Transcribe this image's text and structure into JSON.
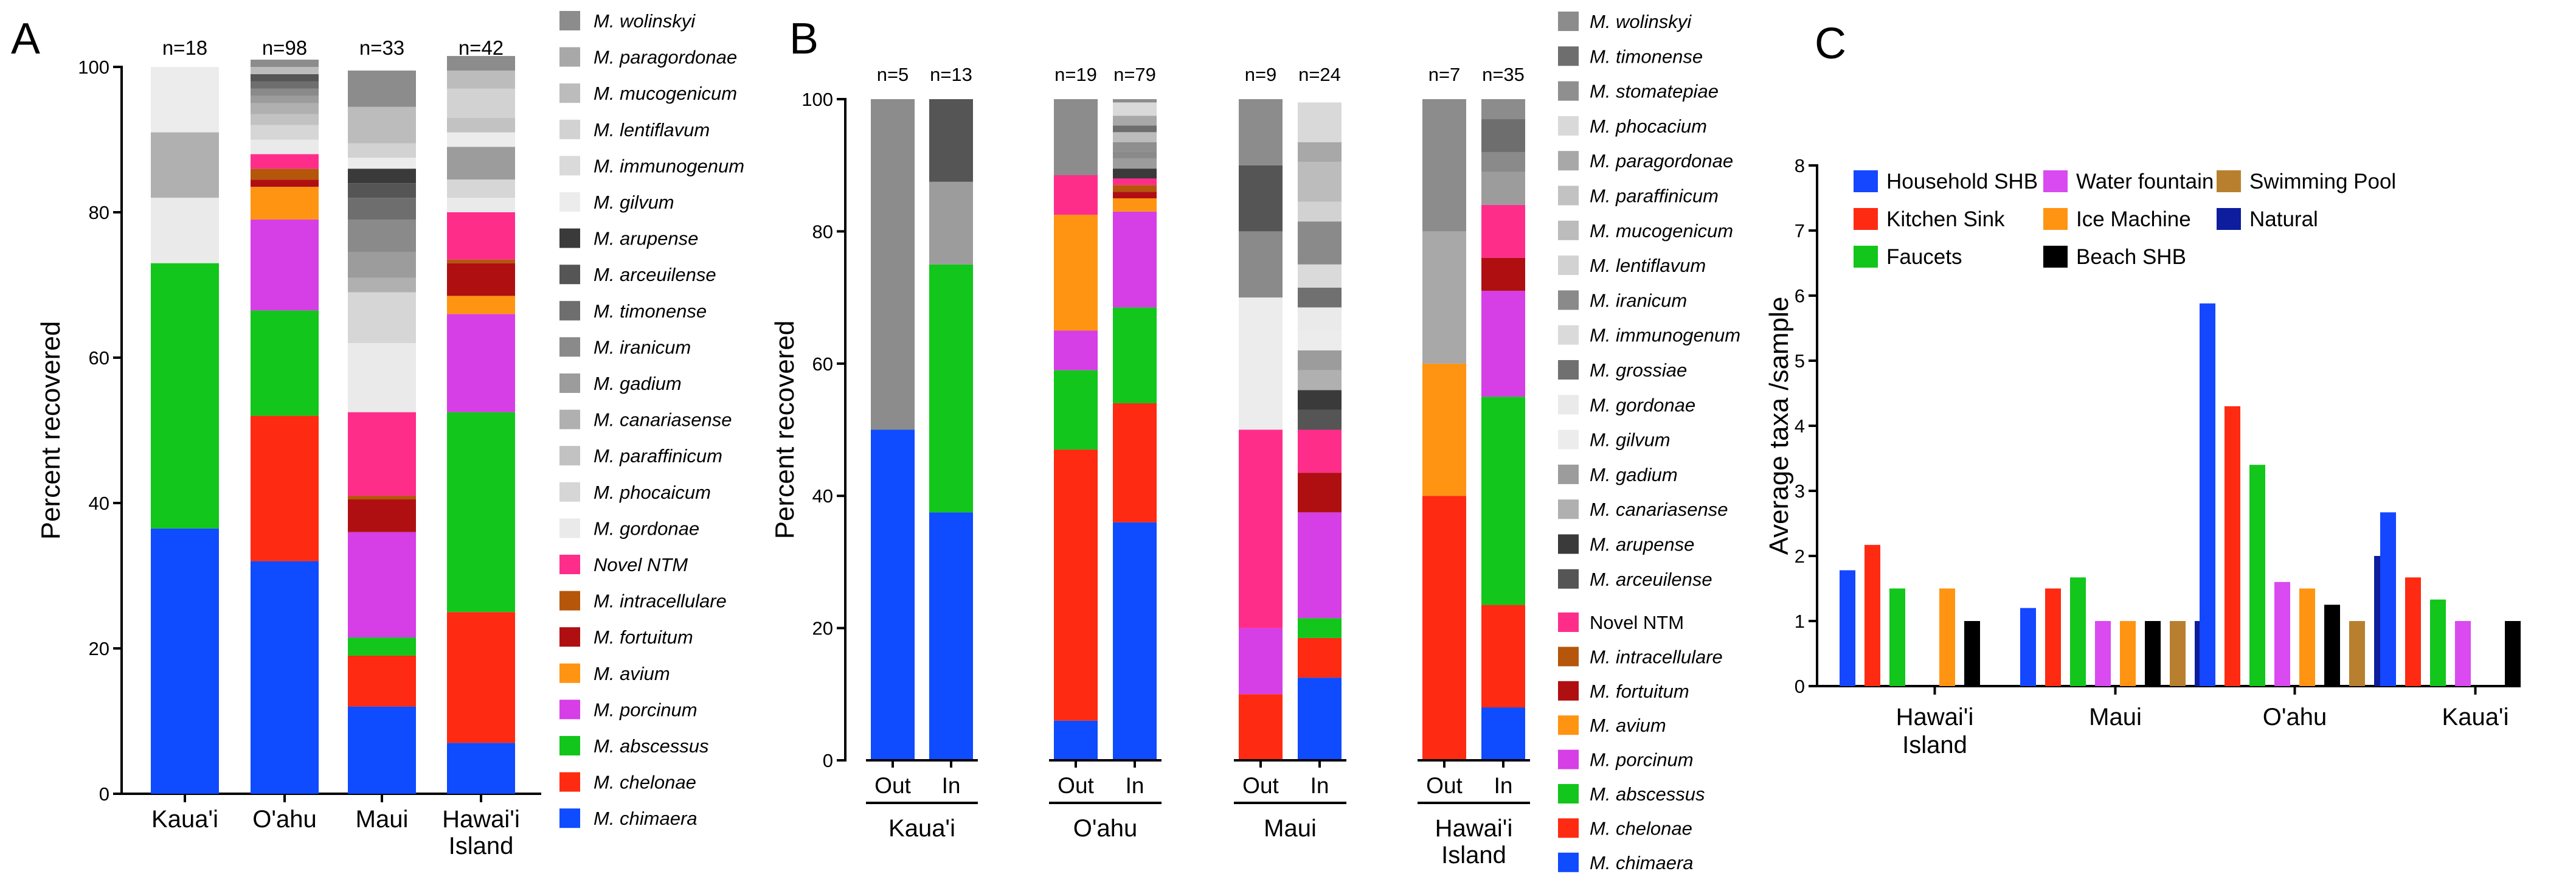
{
  "colors": {
    "M. wolinskyi": "#8c8c8c",
    "M. paragordonae": "#a8a8a8",
    "M. mucogenicum": "#bcbcbc",
    "M. lentiflavum": "#d2d2d2",
    "M. immunogenum": "#dadada",
    "M. gilvum": "#ececec",
    "M. arupense": "#3a3a3a",
    "M. arceuilense": "#555555",
    "M. timonense": "#6e6e6e",
    "M. iranicum": "#8a8a8a",
    "M. gadium": "#9c9c9c",
    "M. canariasense": "#b0b0b0",
    "M. paraffinicum": "#c2c2c2",
    "M. phocaicum": "#d6d6d6",
    "M. gordonae": "#eaeaea",
    "M. stomatepiae": "#8f8f8f",
    "M. phocacium": "#d9d9d9",
    "M. grossiae": "#707070",
    "Novel NTM": "#ff2d8a",
    "M. intracellulare": "#b5560a",
    "M. fortuitum": "#b00f12",
    "M. avium": "#ff9412",
    "M. porcinum": "#d63ee6",
    "M. abscessus": "#12c61b",
    "M. chelonae": "#ff2a12",
    "M. chimaera": "#0f4bff"
  },
  "chart_data": [
    {
      "panel_label": "A",
      "type": "bar",
      "stacked": true,
      "ylabel": "Percent recovered",
      "ylim": [
        0,
        100
      ],
      "yticks": [
        "0",
        "20",
        "40",
        "60",
        "80",
        "100"
      ],
      "groups": [
        {
          "label": "Kaua'i",
          "n": "n=18",
          "segments": [
            {
              "species": "M. chimaera",
              "value": 36.5
            },
            {
              "species": "M. abscessus",
              "value": 36.5
            },
            {
              "species": "M. gordonae",
              "value": 9
            },
            {
              "species": "M. canariasense",
              "value": 9
            },
            {
              "species": "M. gilvum",
              "value": 9
            }
          ]
        },
        {
          "label": "O'ahu",
          "n": "n=98",
          "segments": [
            {
              "species": "M. chimaera",
              "value": 32
            },
            {
              "species": "M. chelonae",
              "value": 20
            },
            {
              "species": "M. abscessus",
              "value": 14.5
            },
            {
              "species": "M. porcinum",
              "value": 12.5
            },
            {
              "species": "M. avium",
              "value": 4.5
            },
            {
              "species": "M. fortuitum",
              "value": 1
            },
            {
              "species": "M. intracellulare",
              "value": 1.5
            },
            {
              "species": "Novel NTM",
              "value": 2
            },
            {
              "species": "M. gordonae",
              "value": 2
            },
            {
              "species": "M. phocaicum",
              "value": 2
            },
            {
              "species": "M. paraffinicum",
              "value": 1.5
            },
            {
              "species": "M. canariasense",
              "value": 1.5
            },
            {
              "species": "M. gadium",
              "value": 1
            },
            {
              "species": "M. iranicum",
              "value": 1
            },
            {
              "species": "M. timonense",
              "value": 1
            },
            {
              "species": "M. arceuilense",
              "value": 1
            },
            {
              "species": "M. mucogenicum",
              "value": 1
            },
            {
              "species": "M. wolinskyi",
              "value": 1
            }
          ]
        },
        {
          "label": "Maui",
          "n": "n=33",
          "segments": [
            {
              "species": "M. chimaera",
              "value": 12
            },
            {
              "species": "M. chelonae",
              "value": 7
            },
            {
              "species": "M. abscessus",
              "value": 2.5
            },
            {
              "species": "M. porcinum",
              "value": 14.5
            },
            {
              "species": "M. fortuitum",
              "value": 4.5
            },
            {
              "species": "M. intracellulare",
              "value": 0.5
            },
            {
              "species": "Novel NTM",
              "value": 11.5
            },
            {
              "species": "M. gordonae",
              "value": 9.5
            },
            {
              "species": "M. phocaicum",
              "value": 7
            },
            {
              "species": "M. canariasense",
              "value": 2
            },
            {
              "species": "M. gadium",
              "value": 3.5
            },
            {
              "species": "M. iranicum",
              "value": 4.5
            },
            {
              "species": "M. timonense",
              "value": 3
            },
            {
              "species": "M. arceuilense",
              "value": 2
            },
            {
              "species": "M. arupense",
              "value": 2
            },
            {
              "species": "M. gilvum",
              "value": 1.5
            },
            {
              "species": "M. lentiflavum",
              "value": 2
            },
            {
              "species": "M. mucogenicum",
              "value": 5
            },
            {
              "species": "M. wolinskyi",
              "value": 5
            }
          ]
        },
        {
          "label": "Hawai'i\nIsland",
          "n": "n=42",
          "segments": [
            {
              "species": "M. chimaera",
              "value": 7
            },
            {
              "species": "M. chelonae",
              "value": 18
            },
            {
              "species": "M. abscessus",
              "value": 27.5
            },
            {
              "species": "M. porcinum",
              "value": 13.5
            },
            {
              "species": "M. avium",
              "value": 2.5
            },
            {
              "species": "M. fortuitum",
              "value": 4.5
            },
            {
              "species": "M. intracellulare",
              "value": 0.5
            },
            {
              "species": "Novel NTM",
              "value": 6.5
            },
            {
              "species": "M. gordonae",
              "value": 2
            },
            {
              "species": "M. phocaicum",
              "value": 2.5
            },
            {
              "species": "M. gadium",
              "value": 4.5
            },
            {
              "species": "M. gilvum",
              "value": 2
            },
            {
              "species": "M. paraffinicum",
              "value": 2
            },
            {
              "species": "M. lentiflavum",
              "value": 4
            },
            {
              "species": "M. mucogenicum",
              "value": 2.5
            },
            {
              "species": "M. wolinskyi",
              "value": 2
            }
          ]
        }
      ],
      "legend": [
        "M. wolinskyi",
        "M. paragordonae",
        "M. mucogenicum",
        "M. lentiflavum",
        "M. immunogenum",
        "M. gilvum",
        "M. arupense",
        "M. arceuilense",
        "M. timonense",
        "M. iranicum",
        "M. gadium",
        "M. canariasense",
        "M. paraffinicum",
        "M. phocaicum",
        "M. gordonae",
        "Novel NTM",
        "M. intracellulare",
        "M. fortuitum",
        "M. avium",
        "M. porcinum",
        "M. abscessus",
        "M. chelonae",
        "M. chimaera"
      ]
    },
    {
      "panel_label": "B",
      "type": "bar",
      "stacked": true,
      "ylabel": "Percent recovered",
      "ylim": [
        0,
        100
      ],
      "yticks": [
        "0",
        "20",
        "40",
        "60",
        "80",
        "100"
      ],
      "islands": [
        {
          "label": "Kaua'i",
          "bars": [
            {
              "label": "Out",
              "n": "n=5",
              "segments": [
                {
                  "species": "M. chimaera",
                  "value": 50
                },
                {
                  "species": "M. wolinskyi",
                  "value": 50
                }
              ]
            },
            {
              "label": "In",
              "n": "n=13",
              "segments": [
                {
                  "species": "M. chimaera",
                  "value": 37.5
                },
                {
                  "species": "M. abscessus",
                  "value": 37.5
                },
                {
                  "species": "M. gadium",
                  "value": 12.5
                },
                {
                  "species": "M. arceuilense",
                  "value": 12.5
                }
              ]
            }
          ]
        },
        {
          "label": "O'ahu",
          "bars": [
            {
              "label": "Out",
              "n": "n=19",
              "segments": [
                {
                  "species": "M. chimaera",
                  "value": 6
                },
                {
                  "species": "M. chelonae",
                  "value": 41
                },
                {
                  "species": "M. abscessus",
                  "value": 12
                },
                {
                  "species": "M. porcinum",
                  "value": 6
                },
                {
                  "species": "M. avium",
                  "value": 17.5
                },
                {
                  "species": "Novel NTM",
                  "value": 6
                },
                {
                  "species": "M. wolinskyi",
                  "value": 11.5
                }
              ]
            },
            {
              "label": "In",
              "n": "n=79",
              "segments": [
                {
                  "species": "M. chimaera",
                  "value": 36
                },
                {
                  "species": "M. chelonae",
                  "value": 18
                },
                {
                  "species": "M. abscessus",
                  "value": 14.5
                },
                {
                  "species": "M. porcinum",
                  "value": 14.5
                },
                {
                  "species": "M. avium",
                  "value": 2
                },
                {
                  "species": "M. fortuitum",
                  "value": 1
                },
                {
                  "species": "M. intracellulare",
                  "value": 1
                },
                {
                  "species": "Novel NTM",
                  "value": 1
                },
                {
                  "species": "M. arupense",
                  "value": 1.5
                },
                {
                  "species": "M. gadium",
                  "value": 1.5
                },
                {
                  "species": "M. iranicum",
                  "value": 1
                },
                {
                  "species": "M. stomatepiae",
                  "value": 1.5
                },
                {
                  "species": "M. mucogenicum",
                  "value": 1.5
                },
                {
                  "species": "M. timonense",
                  "value": 1
                },
                {
                  "species": "M. paragordonae",
                  "value": 1.5
                },
                {
                  "species": "M. phocacium",
                  "value": 2
                },
                {
                  "species": "M. wolinskyi",
                  "value": 0.5
                }
              ]
            }
          ]
        },
        {
          "label": "Maui",
          "bars": [
            {
              "label": "Out",
              "n": "n=9",
              "segments": [
                {
                  "species": "M. chelonae",
                  "value": 10
                },
                {
                  "species": "M. porcinum",
                  "value": 10
                },
                {
                  "species": "Novel NTM",
                  "value": 30
                },
                {
                  "species": "M. gilvum",
                  "value": 20
                },
                {
                  "species": "M. iranicum",
                  "value": 10
                },
                {
                  "species": "M. arceuilense",
                  "value": 10
                },
                {
                  "species": "M. wolinskyi",
                  "value": 10
                }
              ]
            },
            {
              "label": "In",
              "n": "n=24",
              "segments": [
                {
                  "species": "M. chimaera",
                  "value": 12.5
                },
                {
                  "species": "M. chelonae",
                  "value": 6
                },
                {
                  "species": "M. abscessus",
                  "value": 3
                },
                {
                  "species": "M. porcinum",
                  "value": 16
                },
                {
                  "species": "M. fortuitum",
                  "value": 6
                },
                {
                  "species": "Novel NTM",
                  "value": 6.5
                },
                {
                  "species": "M. arceuilense",
                  "value": 3
                },
                {
                  "species": "M. arupense",
                  "value": 3
                },
                {
                  "species": "M. canariasense",
                  "value": 3
                },
                {
                  "species": "M. gadium",
                  "value": 3
                },
                {
                  "species": "M. gilvum",
                  "value": 3
                },
                {
                  "species": "M. gordonae",
                  "value": 3.5
                },
                {
                  "species": "M. grossiae",
                  "value": 3
                },
                {
                  "species": "M. immunogenum",
                  "value": 3.5
                },
                {
                  "species": "M. iranicum",
                  "value": 6.5
                },
                {
                  "species": "M. lentiflavum",
                  "value": 3
                },
                {
                  "species": "M. mucogenicum",
                  "value": 6
                },
                {
                  "species": "M. paragordonae",
                  "value": 3
                },
                {
                  "species": "M. phocacium",
                  "value": 6
                }
              ]
            }
          ]
        },
        {
          "label": "Hawai'i\nIsland",
          "bars": [
            {
              "label": "Out",
              "n": "n=7",
              "segments": [
                {
                  "species": "M. chelonae",
                  "value": 40
                },
                {
                  "species": "M. avium",
                  "value": 20
                },
                {
                  "species": "M. paragordonae",
                  "value": 20
                },
                {
                  "species": "M. wolinskyi",
                  "value": 20
                }
              ]
            },
            {
              "label": "In",
              "n": "n=35",
              "segments": [
                {
                  "species": "M. chimaera",
                  "value": 8
                },
                {
                  "species": "M. chelonae",
                  "value": 15.5
                },
                {
                  "species": "M. abscessus",
                  "value": 31.5
                },
                {
                  "species": "M. porcinum",
                  "value": 16
                },
                {
                  "species": "M. fortuitum",
                  "value": 5
                },
                {
                  "species": "Novel NTM",
                  "value": 8
                },
                {
                  "species": "M. gadium",
                  "value": 5
                },
                {
                  "species": "M. iranicum",
                  "value": 3
                },
                {
                  "species": "M. timonense",
                  "value": 5
                },
                {
                  "species": "M. wolinskyi",
                  "value": 3
                }
              ]
            }
          ]
        }
      ],
      "legend_upper": [
        "M. wolinskyi",
        "M. timonense",
        "M. stomatepiae",
        "M. phocacium",
        "M. paragordonae",
        "M. paraffinicum",
        "M. mucogenicum",
        "M. lentiflavum",
        "M. iranicum",
        "M. immunogenum",
        "M. grossiae",
        "M. gordonae",
        "M. gilvum",
        "M. gadium",
        "M. canariasense",
        "M. arupense",
        "M. arceuilense"
      ],
      "legend_lower": [
        "Novel NTM",
        "M. intracellulare",
        "M. fortuitum",
        "M. avium",
        "M. porcinum",
        "M. abscessus",
        "M. chelonae",
        "M. chimaera"
      ]
    },
    {
      "panel_label": "C",
      "type": "bar",
      "ylabel": "Average taxa /sample",
      "ylim": [
        0,
        8
      ],
      "yticks": [
        "0",
        "1",
        "2",
        "3",
        "4",
        "5",
        "6",
        "7",
        "8"
      ],
      "categories": [
        "Hawai'i\nIsland",
        "Maui",
        "O'ahu",
        "Kaua'i"
      ],
      "series": [
        {
          "name": "Household SHB",
          "color": "#1447ff",
          "values": [
            1.78,
            1.2,
            5.88,
            2.67
          ]
        },
        {
          "name": "Kitchen Sink",
          "color": "#ff2a12",
          "values": [
            2.17,
            1.5,
            4.3,
            1.67
          ]
        },
        {
          "name": "Faucets",
          "color": "#12c61b",
          "values": [
            1.5,
            1.67,
            3.4,
            1.33
          ]
        },
        {
          "name": "Water fountain",
          "color": "#d94af0",
          "values": [
            null,
            1.0,
            1.6,
            1.0
          ]
        },
        {
          "name": "Ice Machine",
          "color": "#ff9412",
          "values": [
            1.5,
            1.0,
            1.5,
            null
          ]
        },
        {
          "name": "Beach SHB",
          "color": "#000000",
          "values": [
            1.0,
            1.0,
            1.25,
            1.0
          ]
        },
        {
          "name": "Swimming Pool",
          "color": "#b8802e",
          "values": [
            null,
            1.0,
            1.0,
            null
          ]
        },
        {
          "name": "Natural",
          "color": "#0d1d9e",
          "values": [
            null,
            1.0,
            2.0,
            null
          ]
        }
      ]
    }
  ]
}
